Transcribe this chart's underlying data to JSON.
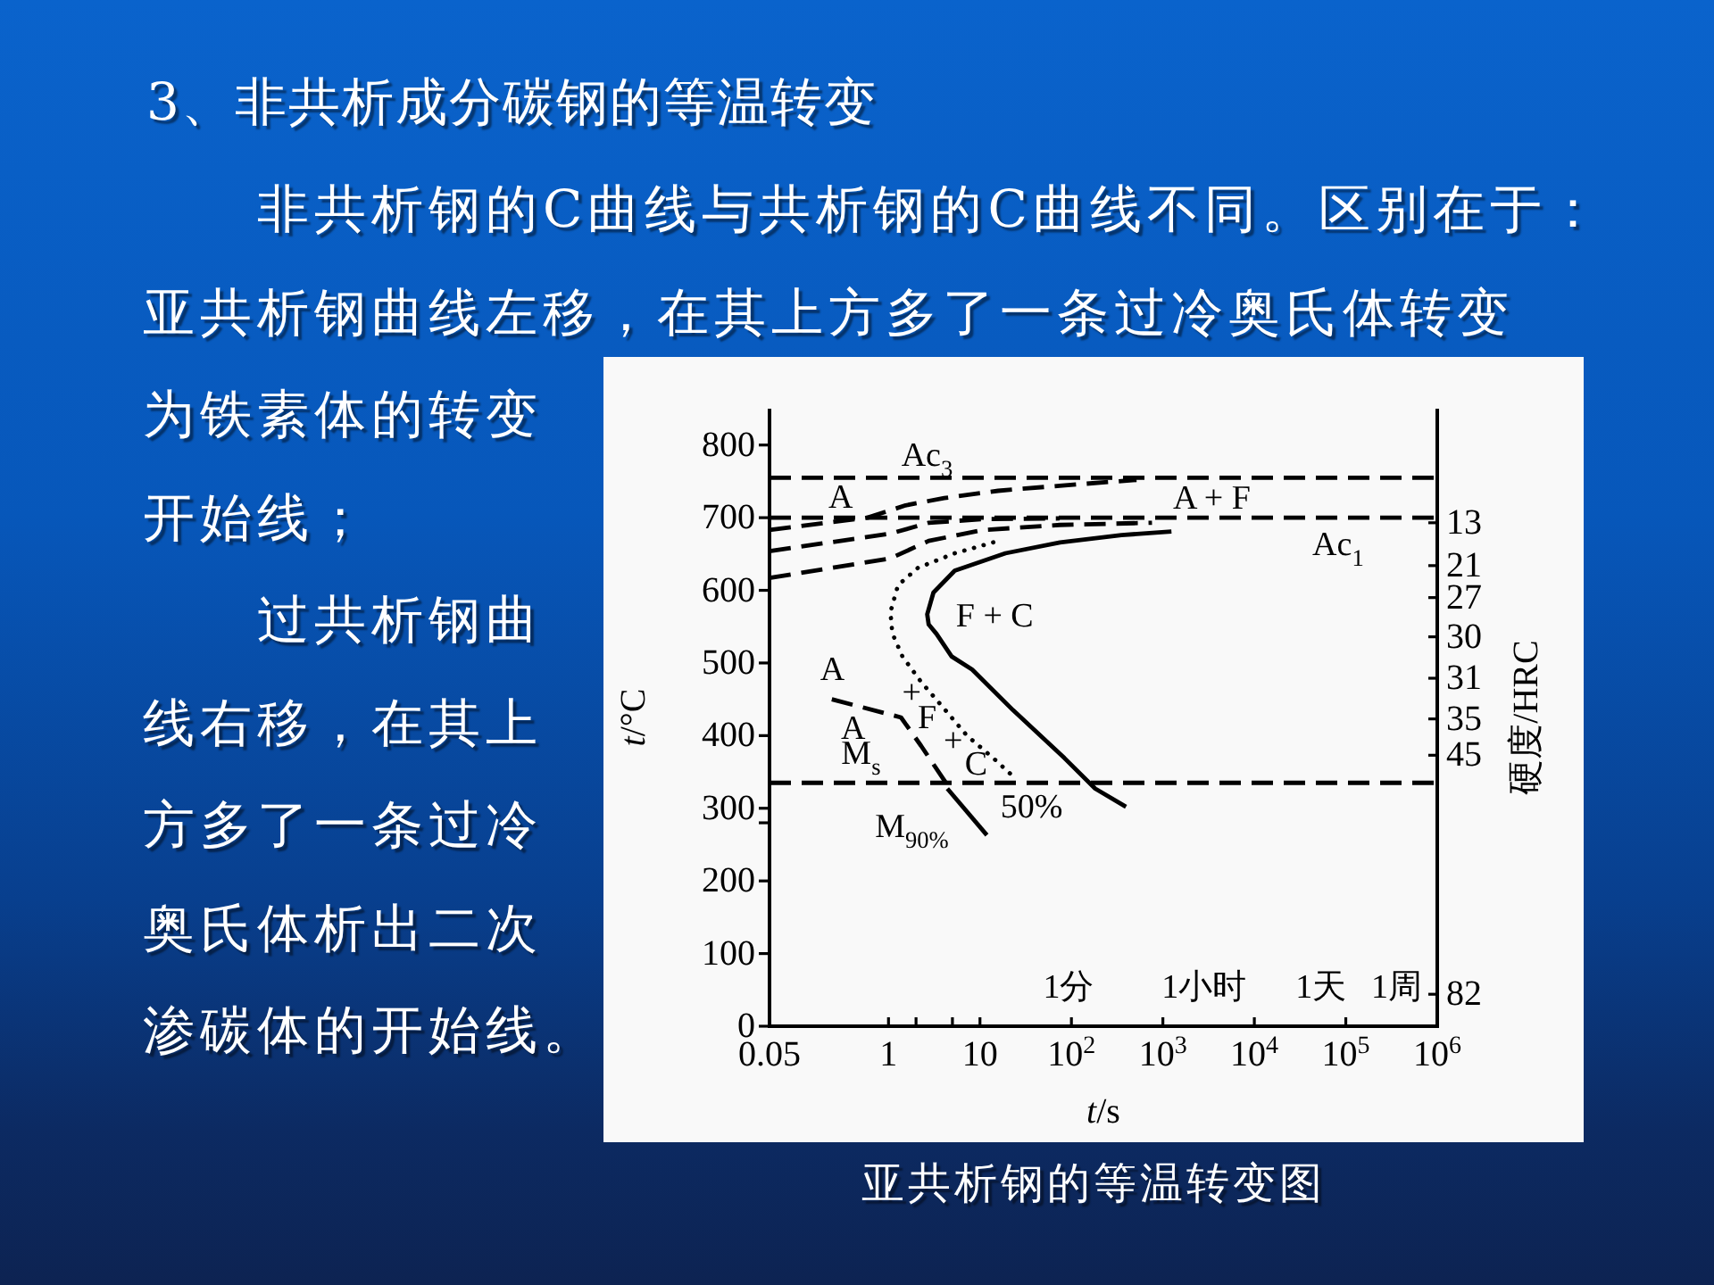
{
  "chart_data": {
    "type": "line",
    "title": "3、非共析成分碳钢的等温转变",
    "xlabel": "*t*/s",
    "ylabel": "*t*/°C",
    "y2label": "硬度/HRC",
    "log": "x",
    "xlim": [
      0.05,
      1000000
    ],
    "ylim": [
      0,
      850
    ],
    "xticks": [
      0.05,
      1,
      {
        "value": 2,
        "label": null
      },
      {
        "value": 5,
        "label": null
      },
      10,
      {
        "value": 100,
        "label": "10$^{2}$"
      },
      {
        "value": 1000,
        "label": "10$^{3}$"
      },
      {
        "value": 10000,
        "label": "10$^{4}$"
      },
      {
        "value": 100000,
        "label": "10$^{5}$"
      },
      {
        "value": 1000000,
        "label": "10$^{6}$"
      }
    ],
    "yticks": [
      0,
      100,
      200,
      300,
      400,
      500,
      600,
      700,
      800,
      {
        "value": 280,
        "label": null
      }
    ],
    "ref_lines": [
      {
        "axis": "y",
        "value": 755,
        "color": "#000000",
        "line_style": "dashed"
      },
      {
        "axis": "y",
        "value": 700,
        "color": "#000000",
        "line_style": "dashed"
      },
      {
        "axis": "y",
        "value": 335,
        "color": "#000000",
        "line_style": "dashed"
      }
    ],
    "series": [
      {
        "color": "#000000",
        "line_style": "dashed",
        "x": [
          0.05,
          0.59,
          1.54,
          4.07,
          15.8,
          74.5,
          515
        ],
        "values": [
          683,
          700,
          717,
          727,
          737,
          744,
          752
        ]
      },
      {
        "color": "#000000",
        "line_style": "dashed",
        "x": [
          0.05,
          1.05,
          2.75,
          10.7,
          74.5
        ],
        "values": [
          654,
          678,
          693,
          698,
          699
        ]
      },
      {
        "color": "#000000",
        "line_style": "dashed",
        "x": [
          0.05,
          1.05,
          2.75,
          10.7,
          74.5,
          760
        ],
        "values": [
          617,
          644,
          668,
          683,
          690,
          693
        ]
      },
      {
        "color": "#000000",
        "line_style": "solid",
        "x": [
          1240,
          353,
          75,
          19,
          5.3,
          3.1,
          2.65,
          2.75,
          3.35,
          4.9,
          8.2,
          23,
          84,
          182,
          395
        ],
        "values": [
          681,
          676,
          666,
          651,
          627,
          597,
          567,
          553,
          540,
          509,
          491,
          435,
          369,
          327,
          302
        ]
      },
      {
        "color": "#000000",
        "line_style": "dotted",
        "x": [
          14,
          5.3,
          2.1,
          1.27,
          1.05,
          1.1,
          1.42,
          2.27,
          3.76,
          7.2,
          14,
          23
        ],
        "values": [
          666,
          651,
          631,
          607,
          570,
          541,
          509,
          474,
          442,
          400,
          369,
          344
        ]
      },
      {
        "color": "#000000",
        "line_style": "dashed",
        "x": [
          0.24,
          1.37,
          2.27,
          4.4
        ],
        "values": [
          450,
          425,
          386,
          332
        ]
      },
      {
        "color": "#000000",
        "line_style": "solid",
        "x": [
          4.4,
          11.9
        ],
        "values": [
          327,
          263
        ]
      }
    ],
    "annotations": [
      "非共析钢的C曲线与共析钢的C曲线不同。区别在于：亚共析钢曲线左移，在其上方多了一条过冷奥氏体转变",
      "为铁素体的转变开始线；",
      "过共析钢曲线右移，在其上方多了一条过冷奥氏体析出二次渗碳体的开始线。",
      "亚共析钢的等温转变图",
      "Ac$_{3}$",
      "A",
      "A + F",
      "Ac$_{1}$",
      "F + C",
      "A",
      "+",
      "F",
      "+",
      "C",
      "A",
      "M$_{s}$",
      "M$_{90%}$",
      "50%",
      "1分",
      "1小时",
      "1天",
      "1周",
      "13",
      "21",
      "27",
      "30",
      "31",
      "35",
      "45",
      "82"
    ]
  }
}
